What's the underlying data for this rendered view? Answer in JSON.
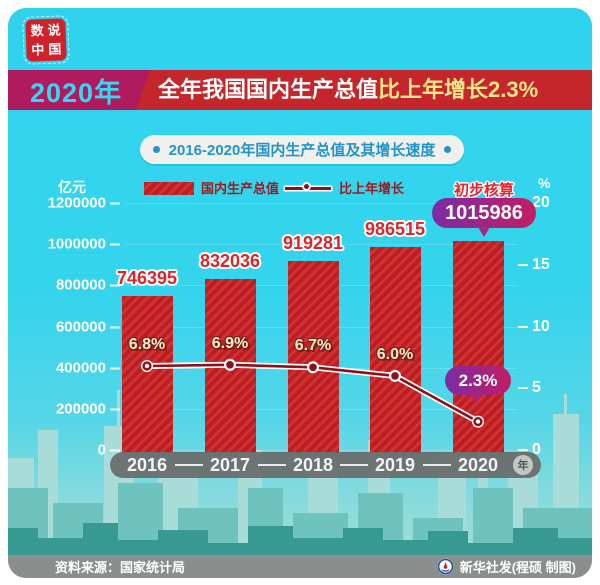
{
  "logo": {
    "name": "数说中国",
    "chars": [
      "数",
      "说",
      "中",
      "国"
    ]
  },
  "header": {
    "year": "2020年",
    "title_main": "全年我国国内生产总值",
    "title_highlight": "比上年增长2.3%"
  },
  "subtitle": "2016-2020年国内生产总值及其增长速度",
  "legend": {
    "unit_left": "亿元",
    "bar_label": "国内生产总值",
    "line_label": "比上年增长",
    "unit_right": "%"
  },
  "chart_data": {
    "type": "bar+line combo",
    "title": "2016-2020年国内生产总值及其增长速度",
    "categories": [
      "2016",
      "2017",
      "2018",
      "2019",
      "2020"
    ],
    "series": [
      {
        "name": "国内生产总值",
        "type": "bar",
        "unit": "亿元",
        "axis": "left",
        "values": [
          746395,
          832036,
          919281,
          986515,
          1015986
        ]
      },
      {
        "name": "比上年增长",
        "type": "line",
        "unit": "%",
        "axis": "right",
        "values": [
          6.8,
          6.9,
          6.7,
          6.0,
          2.3
        ]
      }
    ],
    "left_axis": {
      "unit": "亿元",
      "max": 1200000,
      "ticks": [
        1200000,
        1000000,
        800000,
        600000,
        400000,
        200000,
        0
      ]
    },
    "right_axis": {
      "unit": "%",
      "max": 20,
      "ticks": [
        20,
        15,
        10,
        5,
        0
      ]
    },
    "x_axis_unit": "年",
    "legend_position": "top",
    "annotations": {
      "preliminary_note": "初步核算",
      "final_growth": "2.3%"
    }
  },
  "footer": {
    "source": "资料来源：国家统计局",
    "credit": "新华社发(程硕 制图)"
  },
  "colors": {
    "background_cyan": "#2fd3ee",
    "bar_red": "#bd1e24",
    "banner_magenta": "#b01a5e",
    "banner_red": "#c5262b",
    "highlight_yellow": "#ffe88a",
    "badge_purple_start": "#7b2ca6",
    "badge_purple_end": "#c21e62",
    "pill_text_blue": "#2095cc",
    "label_cream": "#f8efcf",
    "dark_red_line": "#8c1016",
    "footer_gray": "#8a8f8d"
  }
}
